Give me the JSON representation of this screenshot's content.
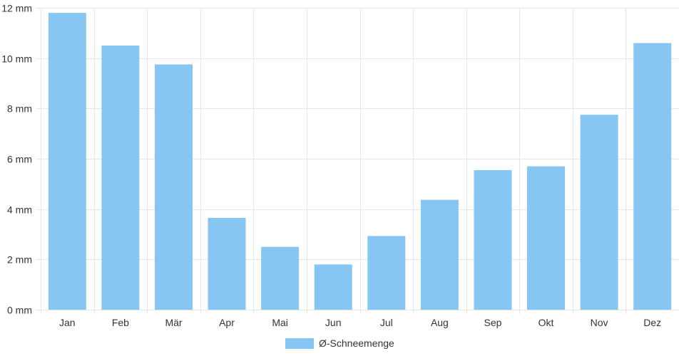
{
  "chart_data": {
    "type": "bar",
    "categories": [
      "Jan",
      "Feb",
      "Mär",
      "Apr",
      "Mai",
      "Jun",
      "Jul",
      "Aug",
      "Sep",
      "Okt",
      "Nov",
      "Dez"
    ],
    "series": [
      {
        "name": "Ø-Schneemenge",
        "values": [
          11.8,
          10.5,
          9.75,
          3.65,
          2.5,
          1.8,
          2.93,
          4.37,
          5.55,
          5.7,
          7.75,
          10.6
        ],
        "color": "#87c6f2"
      }
    ],
    "y_unit": "mm",
    "ylim": [
      0,
      12
    ],
    "y_ticks": [
      0,
      2,
      4,
      6,
      8,
      10,
      12
    ],
    "y_tick_labels": [
      "0 mm",
      "2 mm",
      "4 mm",
      "6 mm",
      "8 mm",
      "10 mm",
      "12 mm"
    ],
    "grid": true,
    "legend_position": "bottom-center"
  }
}
